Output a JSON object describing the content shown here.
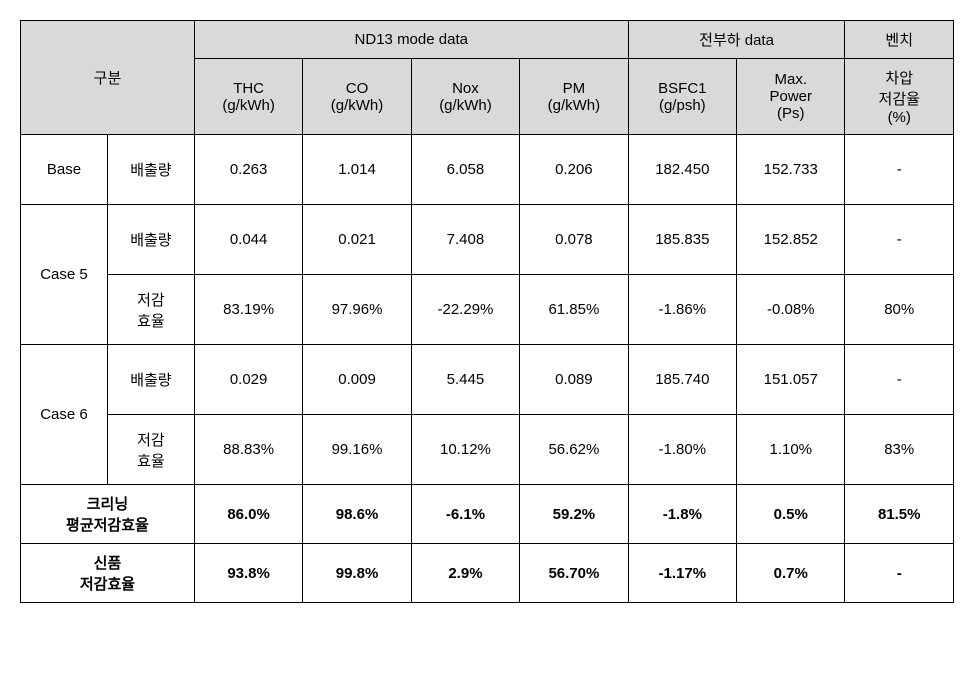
{
  "headers": {
    "group_label": "구분",
    "nd13_label": "ND13  mode  data",
    "jeonbuha_label": "전부하    data",
    "benchi_label": "벤치",
    "thc": "THC\n(g/kWh)",
    "co": "CO\n(g/kWh)",
    "nox": "Nox\n(g/kWh)",
    "pm": "PM\n(g/kWh)",
    "bsfc1": "BSFC1\n(g/psh)",
    "maxpower": "Max.\nPower\n(Ps)",
    "chap": "차압\n저감율\n(%)"
  },
  "row_labels": {
    "base": "Base",
    "case5": "Case 5",
    "case6": "Case 6",
    "emission": "배출량",
    "reduction": "저감\n효율",
    "cleaning_avg": "크리닝\n평균저감효율",
    "new_reduction": "신품\n저감효율"
  },
  "base": {
    "thc": "0.263",
    "co": "1.014",
    "nox": "6.058",
    "pm": "0.206",
    "bsfc1": "182.450",
    "maxpower": "152.733",
    "chap": "-"
  },
  "case5_emission": {
    "thc": "0.044",
    "co": "0.021",
    "nox": "7.408",
    "pm": "0.078",
    "bsfc1": "185.835",
    "maxpower": "152.852",
    "chap": "-"
  },
  "case5_reduction": {
    "thc": "83.19%",
    "co": "97.96%",
    "nox": "-22.29%",
    "pm": "61.85%",
    "bsfc1": "-1.86%",
    "maxpower": "-0.08%",
    "chap": "80%"
  },
  "case6_emission": {
    "thc": "0.029",
    "co": "0.009",
    "nox": "5.445",
    "pm": "0.089",
    "bsfc1": "185.740",
    "maxpower": "151.057",
    "chap": "-"
  },
  "case6_reduction": {
    "thc": "88.83%",
    "co": "99.16%",
    "nox": "10.12%",
    "pm": "56.62%",
    "bsfc1": "-1.80%",
    "maxpower": "1.10%",
    "chap": "83%"
  },
  "cleaning_avg": {
    "thc": "86.0%",
    "co": "98.6%",
    "nox": "-6.1%",
    "pm": "59.2%",
    "bsfc1": "-1.8%",
    "maxpower": "0.5%",
    "chap": "81.5%"
  },
  "new_reduction": {
    "thc": "93.8%",
    "co": "99.8%",
    "nox": "2.9%",
    "pm": "56.70%",
    "bsfc1": "-1.17%",
    "maxpower": "0.7%",
    "chap": "-"
  }
}
